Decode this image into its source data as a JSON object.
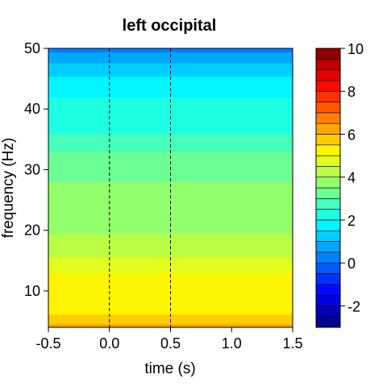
{
  "chart_data": {
    "type": "heatmap",
    "title": "left occipital",
    "xlabel": "time (s)",
    "ylabel": "frequency (Hz)",
    "xlim": [
      -0.5,
      1.5
    ],
    "ylim": [
      4,
      50
    ],
    "x_ticks": [
      -0.5,
      0.0,
      0.5,
      1.0,
      1.5
    ],
    "x_tick_labels": [
      "-0.5",
      "0.0",
      "0.5",
      "1.0",
      "1.5"
    ],
    "y_ticks": [
      10,
      20,
      30,
      40,
      50
    ],
    "y_tick_labels": [
      "10",
      "20",
      "30",
      "40",
      "50"
    ],
    "vlines": [
      0.0,
      0.5
    ],
    "grid": false,
    "colorbar": {
      "range": [
        -3,
        10
      ],
      "step": 0.5,
      "ticks": [
        -2,
        0,
        2,
        4,
        6,
        8,
        10
      ],
      "tick_labels": [
        "-2",
        "0",
        "2",
        "4",
        "6",
        "8",
        "10"
      ],
      "placement": "right",
      "colormap": "jet"
    },
    "frequency_profile": {
      "frequency_hz": [
        4,
        5,
        7,
        10,
        13,
        16,
        18,
        22,
        26,
        30,
        33,
        36,
        40,
        44,
        47,
        49,
        50
      ],
      "value": [
        6.3,
        5.8,
        5.3,
        5.2,
        5.0,
        4.4,
        4.1,
        3.8,
        3.6,
        3.4,
        3.0,
        2.5,
        2.2,
        1.8,
        1.2,
        0.6,
        0.3
      ]
    }
  }
}
